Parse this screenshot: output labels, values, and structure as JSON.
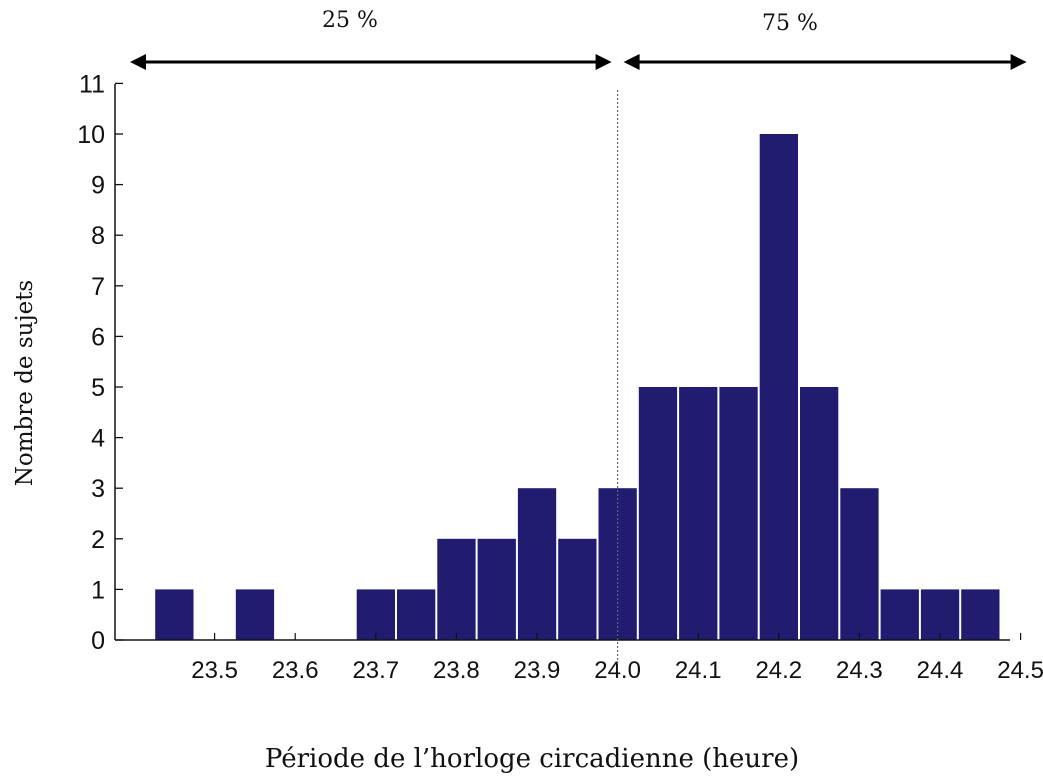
{
  "chart_data": {
    "type": "bar",
    "title": "",
    "xlabel": "Période de l’horloge circadienne (heure)",
    "ylabel": "Nombre de sujets",
    "bin_width": 0.05,
    "bars": [
      {
        "x": 23.45,
        "value": 1
      },
      {
        "x": 23.55,
        "value": 1
      },
      {
        "x": 23.7,
        "value": 1
      },
      {
        "x": 23.75,
        "value": 1
      },
      {
        "x": 23.8,
        "value": 2
      },
      {
        "x": 23.85,
        "value": 2
      },
      {
        "x": 23.9,
        "value": 3
      },
      {
        "x": 23.95,
        "value": 2
      },
      {
        "x": 24.0,
        "value": 3
      },
      {
        "x": 24.05,
        "value": 5
      },
      {
        "x": 24.1,
        "value": 5
      },
      {
        "x": 24.15,
        "value": 5
      },
      {
        "x": 24.2,
        "value": 10
      },
      {
        "x": 24.25,
        "value": 5
      },
      {
        "x": 24.3,
        "value": 3
      },
      {
        "x": 24.35,
        "value": 1
      },
      {
        "x": 24.4,
        "value": 1
      },
      {
        "x": 24.45,
        "value": 1
      }
    ],
    "x_ticks": [
      "23.5",
      "23.6",
      "23.7",
      "23.8",
      "23.9",
      "24.0",
      "24.1",
      "24.2",
      "24.3",
      "24.4",
      "24.5"
    ],
    "y_ticks": [
      "0",
      "1",
      "2",
      "3",
      "4",
      "5",
      "6",
      "7",
      "8",
      "9",
      "10",
      "11"
    ],
    "xlim": [
      23.4,
      24.5
    ],
    "ylim": [
      0,
      11
    ],
    "grid": false,
    "bar_color": "#221c70",
    "reference_line": {
      "x": 24.0,
      "style": "dotted"
    },
    "annotations": {
      "left_span": {
        "label": "25 %",
        "from": 23.4,
        "to": 24.0
      },
      "right_span": {
        "label": "75 %",
        "from": 24.0,
        "to": 24.5
      }
    }
  }
}
